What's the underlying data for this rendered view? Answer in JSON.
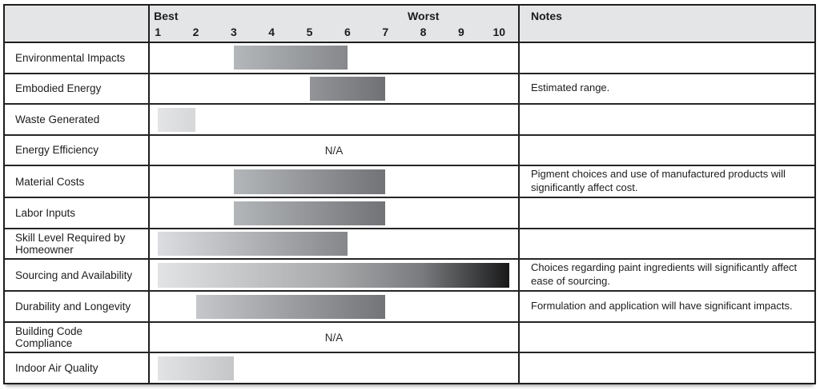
{
  "chart_data": {
    "type": "bar",
    "orientation": "horizontal",
    "scale": {
      "min": 1,
      "max": 10,
      "best_label": "Best",
      "worst_label": "Worst",
      "ticks": [
        "1",
        "2",
        "3",
        "4",
        "5",
        "6",
        "7",
        "8",
        "9",
        "10"
      ]
    },
    "notes_header": "Notes",
    "na_text": "N/A",
    "rows": [
      {
        "label": "Environmental Impacts",
        "range": [
          3,
          6
        ],
        "note": "",
        "gradient": [
          "#b4b7ba",
          "#86888c"
        ]
      },
      {
        "label": "Embodied Energy",
        "range": [
          5,
          7
        ],
        "note": "Estimated range.",
        "gradient": [
          "#929498",
          "#707175"
        ]
      },
      {
        "label": "Waste Generated",
        "range": [
          1,
          2
        ],
        "note": "",
        "gradient": [
          "#e3e4e6",
          "#d6d7d9"
        ]
      },
      {
        "label": "Energy Efficiency",
        "range": null,
        "note": ""
      },
      {
        "label": "Material Costs",
        "range": [
          3,
          7
        ],
        "note": "Pigment choices and use of manufactured products will significantly affect cost.",
        "gradient": [
          "#b3b6b9",
          "#727377"
        ]
      },
      {
        "label": "Labor Inputs",
        "range": [
          3,
          7
        ],
        "note": "",
        "gradient": [
          "#b3b6b9",
          "#727377"
        ]
      },
      {
        "label": "Skill Level Required by Homeowner",
        "range": [
          1,
          6
        ],
        "note": "",
        "gradient": [
          "#dcdde0",
          "#85878b"
        ]
      },
      {
        "label": "Sourcing and Availability",
        "range": [
          1,
          10
        ],
        "to_edge": true,
        "note": "Choices regarding paint ingredients will significantly affect ease of sourcing.",
        "gradient": [
          "#e2e3e5 0%",
          "#a6a8aa 50%",
          "#7a7b7e 75%",
          "#404143 90%",
          "#191919 100%"
        ]
      },
      {
        "label": "Durability and Longevity",
        "range": [
          2,
          7
        ],
        "note": "Formulation and application will have significant impacts.",
        "gradient": [
          "#c5c7ca",
          "#737478"
        ]
      },
      {
        "label": "Building Code Compliance",
        "range": null,
        "note": ""
      },
      {
        "label": "Indoor Air Quality",
        "range": [
          1,
          3
        ],
        "note": "",
        "gradient": [
          "#e2e3e5",
          "#c4c6c8"
        ]
      }
    ]
  }
}
